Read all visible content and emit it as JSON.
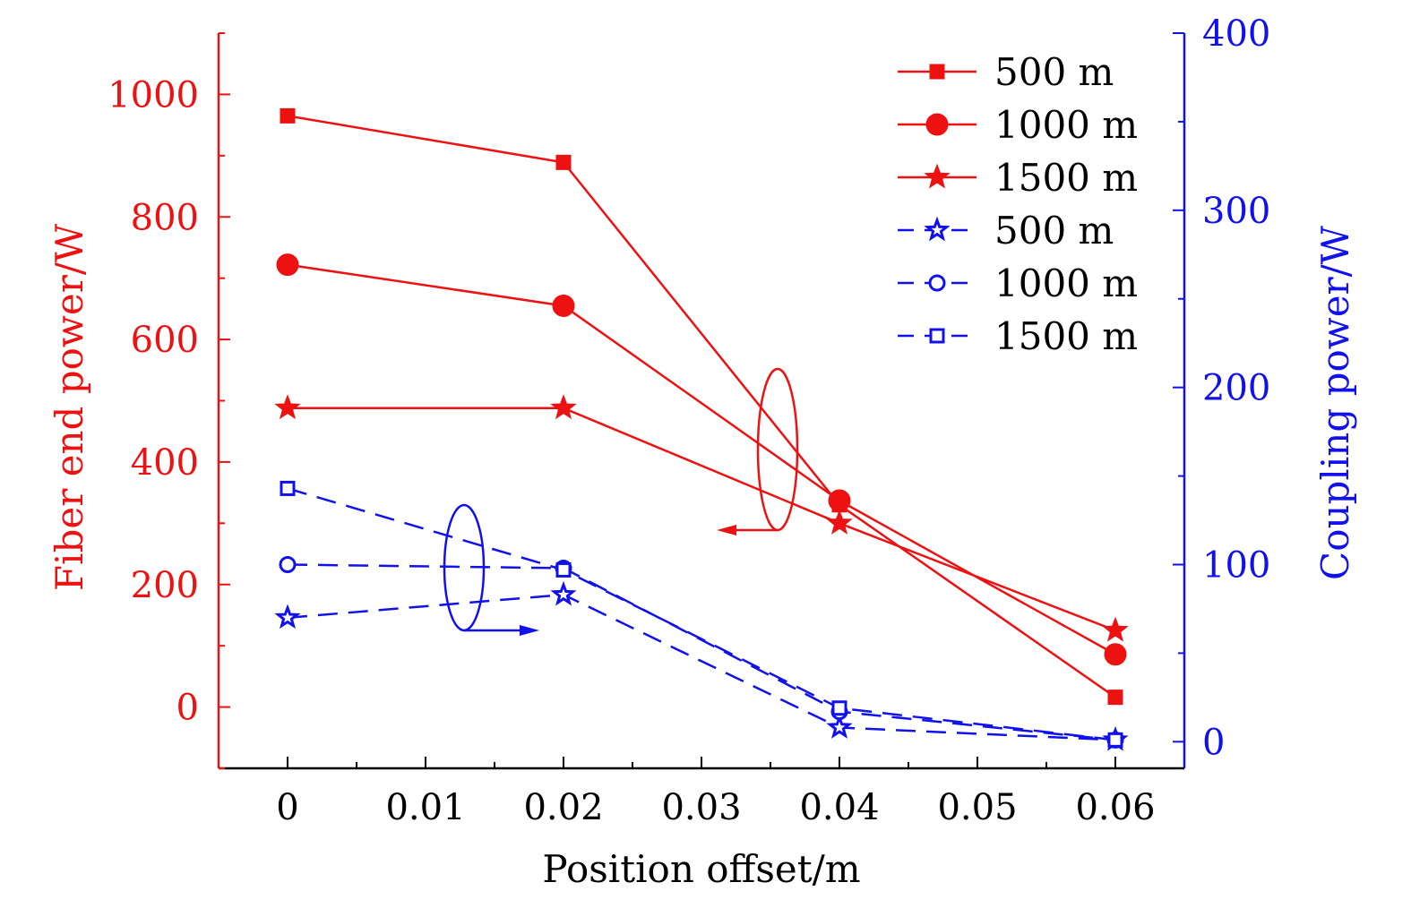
{
  "chart_data": {
    "type": "line",
    "title": "",
    "xlabel": "Position offset/m",
    "ylabel_left": "Fiber end power/W",
    "ylabel_right": "Coupling power/W",
    "xlim": [
      -0.005,
      0.065
    ],
    "ylim_left": [
      -100,
      1100
    ],
    "ylim_right": [
      -15,
      400
    ],
    "x_ticks": [
      0,
      0.01,
      0.02,
      0.03,
      0.04,
      0.05,
      0.06
    ],
    "x_tick_labels": [
      "0",
      "0.01",
      "0.02",
      "0.03",
      "0.04",
      "0.05",
      "0.06"
    ],
    "y_left_ticks": [
      0,
      200,
      400,
      600,
      800,
      1000
    ],
    "y_left_tick_labels": [
      "0",
      "200",
      "400",
      "600",
      "800",
      "1000"
    ],
    "y_right_ticks": [
      0,
      100,
      200,
      300,
      400
    ],
    "y_right_tick_labels": [
      "0",
      "100",
      "200",
      "300",
      "400"
    ],
    "x": [
      0,
      0.02,
      0.04,
      0.06
    ],
    "legend_placement": "top-right",
    "grid": false,
    "colors": {
      "left": "#ee1111",
      "right": "#1111ee"
    },
    "series": [
      {
        "name": "500 m",
        "axis": "left",
        "marker": "square-filled",
        "dash": false,
        "values": [
          965,
          889,
          330,
          16
        ]
      },
      {
        "name": "1000 m",
        "axis": "left",
        "marker": "circle-filled",
        "dash": false,
        "values": [
          722,
          655,
          337,
          86
        ]
      },
      {
        "name": "1500 m",
        "axis": "left",
        "marker": "star-filled",
        "dash": false,
        "values": [
          488,
          488,
          300,
          125
        ]
      },
      {
        "name": "500 m",
        "axis": "right",
        "marker": "star-open",
        "dash": true,
        "values": [
          70,
          83,
          8,
          1
        ]
      },
      {
        "name": "1000 m",
        "axis": "right",
        "marker": "circle-open",
        "dash": true,
        "values": [
          100,
          98,
          17,
          1
        ]
      },
      {
        "name": "1500 m",
        "axis": "right",
        "marker": "square-open",
        "dash": true,
        "values": [
          143,
          97,
          19,
          1
        ]
      }
    ]
  }
}
